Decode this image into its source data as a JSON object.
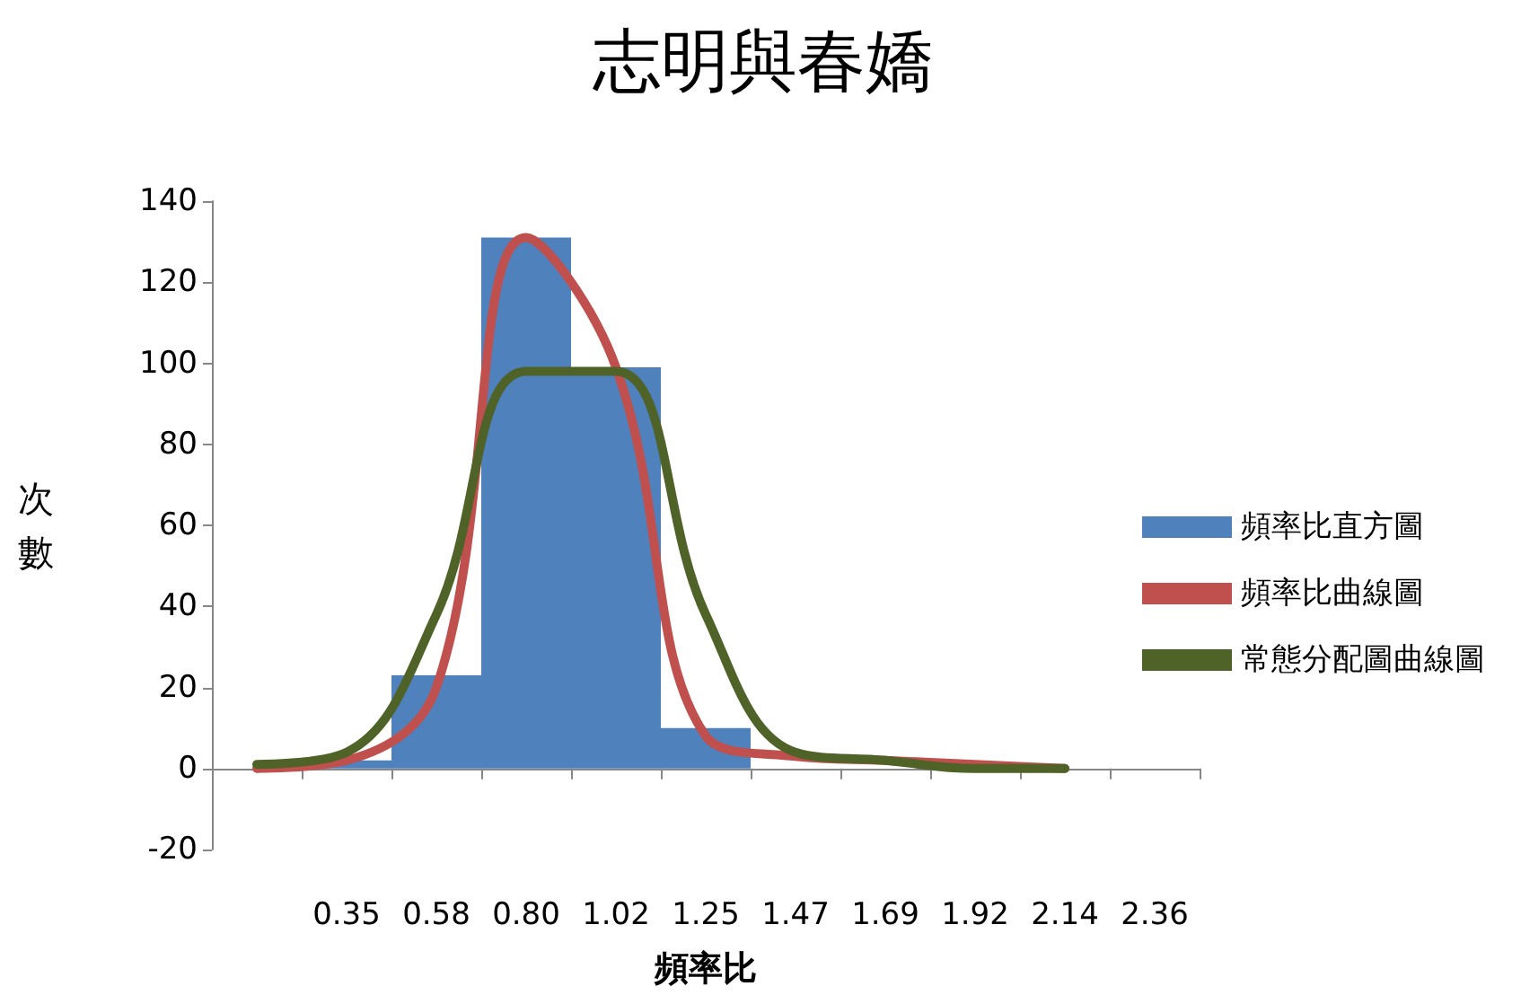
{
  "chart_data": {
    "type": "bar",
    "title": "志明與春嬌",
    "xlabel": "頻率比",
    "ylabel": "次數",
    "categories": [
      null,
      "0.35",
      "0.58",
      "0.80",
      "1.02",
      "1.25",
      "1.47",
      "1.69",
      "1.92",
      "2.14",
      "2.36"
    ],
    "series": [
      {
        "name": "頻率比直方圖",
        "color": "#4f81bd",
        "values": [
          0,
          2,
          23,
          131,
          99,
          10,
          0,
          0,
          0,
          0,
          0
        ]
      },
      {
        "name": "頻率比曲線圖",
        "type": "line",
        "color": "#c0504d",
        "values": [
          0,
          2,
          20,
          131,
          99,
          8,
          3,
          2,
          1,
          0,
          null
        ]
      },
      {
        "name": "常態分配圖曲線圖",
        "type": "line",
        "color": "#4f6228",
        "values": [
          1,
          4,
          38,
          98,
          98,
          38,
          4,
          2,
          0,
          0,
          null
        ]
      }
    ],
    "ylim": [
      -20,
      140
    ],
    "yticks": [
      -20,
      0,
      20,
      40,
      60,
      80,
      100,
      120,
      140
    ],
    "legend": "right",
    "marker": "none",
    "line_style": "solid"
  }
}
